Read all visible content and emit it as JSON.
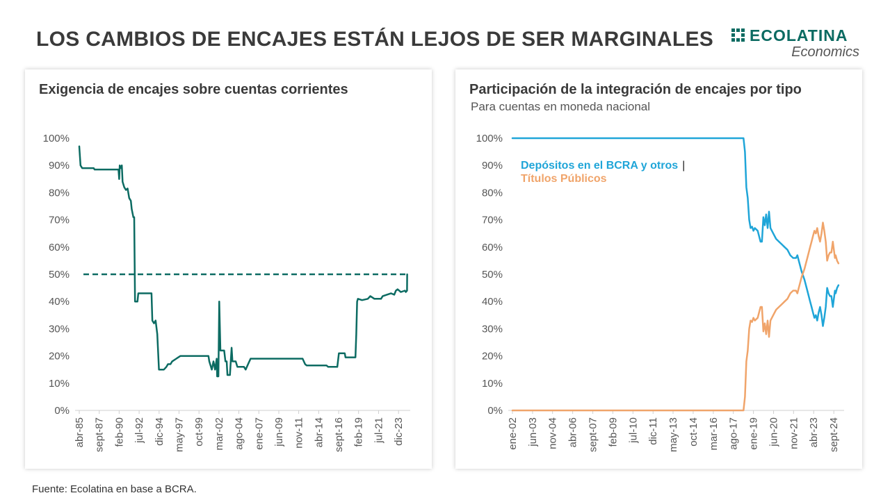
{
  "header": {
    "title": "LOS CAMBIOS DE ENCAJES ESTÁN LEJOS DE SER MARGINALES",
    "logo_name": "ECOLATINA",
    "logo_sub": "Economics",
    "logo_color": "#0c6b62"
  },
  "footer": {
    "source": "Fuente: Ecolatina en base a BCRA."
  },
  "chart_data": [
    {
      "type": "line",
      "title": "Exigencia de encajes sobre cuentas corrientes",
      "xlabel": "",
      "ylabel": "",
      "ylim": [
        0,
        100
      ],
      "y_ticks": [
        "0%",
        "10%",
        "20%",
        "30%",
        "40%",
        "50%",
        "60%",
        "70%",
        "80%",
        "90%",
        "100%"
      ],
      "x_range": [
        1985.25,
        2025.0
      ],
      "x_ticks": [
        {
          "label": "abr-85",
          "x": 1985.25
        },
        {
          "label": "sept-87",
          "x": 1987.67
        },
        {
          "label": "feb-90",
          "x": 1990.08
        },
        {
          "label": "jul-92",
          "x": 1992.5
        },
        {
          "label": "dic-94",
          "x": 1994.92
        },
        {
          "label": "may-97",
          "x": 1997.33
        },
        {
          "label": "oct-99",
          "x": 1999.75
        },
        {
          "label": "mar-02",
          "x": 2002.17
        },
        {
          "label": "ago-04",
          "x": 2004.58
        },
        {
          "label": "ene-07",
          "x": 2007.0
        },
        {
          "label": "jun-09",
          "x": 2009.42
        },
        {
          "label": "nov-11",
          "x": 2011.83
        },
        {
          "label": "abr-14",
          "x": 2014.25
        },
        {
          "label": "sept-16",
          "x": 2016.67
        },
        {
          "label": "feb-19",
          "x": 2019.08
        },
        {
          "label": "jul-21",
          "x": 2021.5
        },
        {
          "label": "dic-23",
          "x": 2023.92
        }
      ],
      "series": [
        {
          "color": "#0c6b62",
          "points": [
            [
              1985.25,
              97
            ],
            [
              1985.4,
              90
            ],
            [
              1985.6,
              89
            ],
            [
              1987.0,
              89
            ],
            [
              1987.1,
              88.5
            ],
            [
              1990.0,
              88.5
            ],
            [
              1990.08,
              85
            ],
            [
              1990.15,
              90
            ],
            [
              1990.3,
              89
            ],
            [
              1990.4,
              90
            ],
            [
              1990.5,
              84
            ],
            [
              1990.7,
              82
            ],
            [
              1990.9,
              81
            ],
            [
              1991.1,
              81.5
            ],
            [
              1991.3,
              78
            ],
            [
              1991.5,
              77
            ],
            [
              1991.6,
              74
            ],
            [
              1991.8,
              71
            ],
            [
              1991.9,
              71
            ],
            [
              1992.0,
              40
            ],
            [
              1992.3,
              40
            ],
            [
              1992.4,
              43
            ],
            [
              1994.0,
              43
            ],
            [
              1994.1,
              33
            ],
            [
              1994.3,
              32
            ],
            [
              1994.5,
              33
            ],
            [
              1994.7,
              28
            ],
            [
              1994.9,
              15
            ],
            [
              1995.5,
              15
            ],
            [
              1995.8,
              16
            ],
            [
              1996.0,
              17
            ],
            [
              1996.3,
              17
            ],
            [
              1996.5,
              18
            ],
            [
              1997.0,
              19
            ],
            [
              1997.5,
              20
            ],
            [
              2000.9,
              20
            ],
            [
              2001.0,
              18
            ],
            [
              2001.3,
              15
            ],
            [
              2001.5,
              18
            ],
            [
              2001.7,
              15
            ],
            [
              2001.9,
              19
            ],
            [
              2001.95,
              12.5
            ],
            [
              2002.1,
              12.5
            ],
            [
              2002.2,
              40
            ],
            [
              2002.35,
              22
            ],
            [
              2002.6,
              22
            ],
            [
              2002.8,
              22
            ],
            [
              2002.95,
              18
            ],
            [
              2003.1,
              18
            ],
            [
              2003.2,
              13
            ],
            [
              2003.5,
              13
            ],
            [
              2003.7,
              23
            ],
            [
              2003.8,
              18
            ],
            [
              2004.2,
              18
            ],
            [
              2004.4,
              16
            ],
            [
              2005.2,
              16
            ],
            [
              2005.4,
              15
            ],
            [
              2005.7,
              17
            ],
            [
              2006.0,
              19
            ],
            [
              2012.3,
              19
            ],
            [
              2012.6,
              17
            ],
            [
              2012.8,
              16.5
            ],
            [
              2015.2,
              16.5
            ],
            [
              2015.4,
              16
            ],
            [
              2016.5,
              16
            ],
            [
              2016.7,
              21
            ],
            [
              2017.4,
              21
            ],
            [
              2017.5,
              19.5
            ],
            [
              2018.7,
              19.5
            ],
            [
              2018.8,
              28
            ],
            [
              2018.9,
              40
            ],
            [
              2019.0,
              41
            ],
            [
              2019.5,
              40.5
            ],
            [
              2020.2,
              41
            ],
            [
              2020.5,
              42
            ],
            [
              2021.0,
              41
            ],
            [
              2021.8,
              41
            ],
            [
              2022.0,
              42
            ],
            [
              2022.5,
              42.5
            ],
            [
              2023.0,
              43
            ],
            [
              2023.4,
              42.5
            ],
            [
              2023.6,
              44
            ],
            [
              2023.8,
              44.5
            ],
            [
              2024.2,
              43.5
            ],
            [
              2024.7,
              44
            ],
            [
              2024.8,
              43.5
            ],
            [
              2024.95,
              44
            ],
            [
              2024.97,
              50
            ]
          ]
        }
      ],
      "reference_line": {
        "y": 50,
        "color": "#0c6b62",
        "style": "dashed"
      }
    },
    {
      "type": "line",
      "title": "Participación de la integración de encajes por tipo",
      "subtitle": "Para cuentas en moneda nacional",
      "xlabel": "",
      "ylabel": "",
      "ylim": [
        0,
        100
      ],
      "y_ticks": [
        "0%",
        "10%",
        "20%",
        "30%",
        "40%",
        "50%",
        "60%",
        "70%",
        "80%",
        "90%",
        "100%"
      ],
      "x_range": [
        2002.0,
        2025.2
      ],
      "x_ticks": [
        {
          "label": "ene-02",
          "x": 2002.0
        },
        {
          "label": "jun-03",
          "x": 2003.42
        },
        {
          "label": "nov-04",
          "x": 2004.83
        },
        {
          "label": "abr-06",
          "x": 2006.25
        },
        {
          "label": "sept-07",
          "x": 2007.67
        },
        {
          "label": "feb-09",
          "x": 2009.08
        },
        {
          "label": "jul-10",
          "x": 2010.5
        },
        {
          "label": "dic-11",
          "x": 2011.92
        },
        {
          "label": "may-13",
          "x": 2013.33
        },
        {
          "label": "oct-14",
          "x": 2014.75
        },
        {
          "label": "mar-16",
          "x": 2016.17
        },
        {
          "label": "ago-17",
          "x": 2017.58
        },
        {
          "label": "ene-19",
          "x": 2019.0
        },
        {
          "label": "jun-20",
          "x": 2020.42
        },
        {
          "label": "nov-21",
          "x": 2021.83
        },
        {
          "label": "abr-23",
          "x": 2023.25
        },
        {
          "label": "sept-24",
          "x": 2024.67
        }
      ],
      "legend_text": {
        "line1": "Depósitos en el BCRA y otros",
        "separator": "|",
        "line2": "Títulos Públicos"
      },
      "series": [
        {
          "name": "Depósitos en el BCRA y otros",
          "color": "#1fa5d8",
          "points": [
            [
              2002.0,
              100
            ],
            [
              2018.3,
              100
            ],
            [
              2018.4,
              95
            ],
            [
              2018.5,
              82
            ],
            [
              2018.6,
              78
            ],
            [
              2018.7,
              70
            ],
            [
              2018.8,
              67
            ],
            [
              2018.9,
              67.5
            ],
            [
              2019.0,
              66
            ],
            [
              2019.1,
              67
            ],
            [
              2019.3,
              66
            ],
            [
              2019.5,
              62
            ],
            [
              2019.6,
              62
            ],
            [
              2019.7,
              71
            ],
            [
              2019.8,
              68
            ],
            [
              2019.9,
              72
            ],
            [
              2020.0,
              67
            ],
            [
              2020.1,
              73
            ],
            [
              2020.2,
              67
            ],
            [
              2020.4,
              65
            ],
            [
              2020.6,
              63
            ],
            [
              2020.8,
              62
            ],
            [
              2021.0,
              61
            ],
            [
              2021.2,
              60
            ],
            [
              2021.4,
              59
            ],
            [
              2021.6,
              57
            ],
            [
              2021.8,
              56
            ],
            [
              2022.0,
              56
            ],
            [
              2022.1,
              57
            ],
            [
              2022.2,
              55
            ],
            [
              2022.4,
              51
            ],
            [
              2022.6,
              48
            ],
            [
              2022.8,
              44
            ],
            [
              2023.0,
              40
            ],
            [
              2023.1,
              38
            ],
            [
              2023.2,
              36
            ],
            [
              2023.3,
              34
            ],
            [
              2023.4,
              35
            ],
            [
              2023.5,
              33
            ],
            [
              2023.6,
              36
            ],
            [
              2023.7,
              38
            ],
            [
              2023.8,
              35
            ],
            [
              2023.9,
              31
            ],
            [
              2024.0,
              34
            ],
            [
              2024.1,
              38
            ],
            [
              2024.2,
              45
            ],
            [
              2024.3,
              43
            ],
            [
              2024.4,
              42
            ],
            [
              2024.5,
              42
            ],
            [
              2024.6,
              38
            ],
            [
              2024.7,
              42
            ],
            [
              2024.75,
              44
            ],
            [
              2024.8,
              43
            ],
            [
              2024.9,
              45
            ],
            [
              2025.0,
              46
            ]
          ]
        },
        {
          "name": "Títulos Públicos",
          "color": "#f0a46a",
          "points": [
            [
              2002.0,
              0
            ],
            [
              2018.3,
              0
            ],
            [
              2018.4,
              5
            ],
            [
              2018.5,
              18
            ],
            [
              2018.6,
              22
            ],
            [
              2018.7,
              30
            ],
            [
              2018.8,
              33
            ],
            [
              2018.9,
              32.5
            ],
            [
              2019.0,
              34
            ],
            [
              2019.1,
              33
            ],
            [
              2019.3,
              34
            ],
            [
              2019.5,
              38
            ],
            [
              2019.6,
              38
            ],
            [
              2019.7,
              29
            ],
            [
              2019.8,
              32
            ],
            [
              2019.9,
              28
            ],
            [
              2020.0,
              33
            ],
            [
              2020.1,
              27
            ],
            [
              2020.2,
              33
            ],
            [
              2020.4,
              35
            ],
            [
              2020.6,
              37
            ],
            [
              2020.8,
              38
            ],
            [
              2021.0,
              39
            ],
            [
              2021.2,
              40
            ],
            [
              2021.4,
              41
            ],
            [
              2021.6,
              43
            ],
            [
              2021.8,
              44
            ],
            [
              2022.0,
              44
            ],
            [
              2022.1,
              43
            ],
            [
              2022.2,
              45
            ],
            [
              2022.4,
              49
            ],
            [
              2022.6,
              52
            ],
            [
              2022.8,
              56
            ],
            [
              2023.0,
              60
            ],
            [
              2023.1,
              62
            ],
            [
              2023.2,
              64
            ],
            [
              2023.3,
              66
            ],
            [
              2023.4,
              65
            ],
            [
              2023.5,
              67
            ],
            [
              2023.6,
              64
            ],
            [
              2023.7,
              62
            ],
            [
              2023.8,
              65
            ],
            [
              2023.9,
              69
            ],
            [
              2024.0,
              66
            ],
            [
              2024.1,
              62
            ],
            [
              2024.2,
              55
            ],
            [
              2024.3,
              57
            ],
            [
              2024.4,
              58
            ],
            [
              2024.5,
              58
            ],
            [
              2024.6,
              62
            ],
            [
              2024.7,
              58
            ],
            [
              2024.75,
              56
            ],
            [
              2024.8,
              57
            ],
            [
              2024.9,
              55
            ],
            [
              2025.0,
              54
            ]
          ]
        }
      ]
    }
  ]
}
